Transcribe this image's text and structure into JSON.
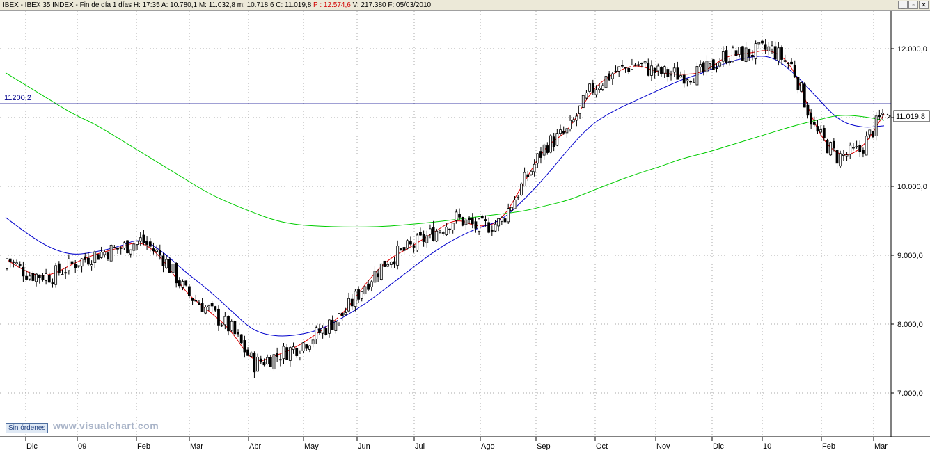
{
  "header": {
    "symbol": "IBEX - IBEX 35 INDEX - Fin de día 1 días",
    "fields": [
      {
        "label": "H:",
        "value": "17:35"
      },
      {
        "label": "A:",
        "value": "10.780,1"
      },
      {
        "label": "M:",
        "value": "11.032,8"
      },
      {
        "label": "m:",
        "value": "10.718,6"
      },
      {
        "label": "C:",
        "value": "11.019,8"
      },
      {
        "label": "P",
        "value": ": 12.574,6",
        "color": "#d00000"
      },
      {
        "label": "V:",
        "value": "217.380"
      },
      {
        "label": "F:",
        "value": "05/03/2010"
      }
    ],
    "window_buttons": [
      "_",
      "▫",
      "✕"
    ]
  },
  "footer": {
    "orders_button": "Sin órdenes",
    "watermark": "www.visualchart.com"
  },
  "chart_data": {
    "type": "candlestick",
    "ylim": [
      6400,
      12600
    ],
    "y_ticks": [
      {
        "value": 7000,
        "label": "7.000,0"
      },
      {
        "value": 8000,
        "label": "8.000,0"
      },
      {
        "value": 9000,
        "label": "9.000,0"
      },
      {
        "value": 10000,
        "label": "10.000,0"
      },
      {
        "value": 11000,
        "label": "11.000,0"
      },
      {
        "value": 12000,
        "label": "12.000,0"
      }
    ],
    "x_labels": [
      "Dic",
      "09",
      "Feb",
      "Mar",
      "Abr",
      "May",
      "Jun",
      "Jul",
      "Ago",
      "Sep",
      "Oct",
      "Nov",
      "Dic",
      "10",
      "Feb",
      "Mar"
    ],
    "last_price": {
      "value": 11019.8,
      "label": "11.019,8"
    },
    "horizontal_line": {
      "value": 11200.2,
      "label": "11200.2",
      "color": "#00008b"
    },
    "colors": {
      "up": "#000000",
      "down": "#000000",
      "ma_short": "#e00000",
      "ma_mid": "#0000cc",
      "ma_long": "#00cc00",
      "grid": "#a8a8a8"
    },
    "moving_averages": [
      {
        "color": "#e00000",
        "values": [
          8950,
          8720,
          8700,
          8880,
          9020,
          9100,
          9220,
          8950,
          8450,
          8200,
          7920,
          7420,
          7540,
          7680,
          7900,
          8150,
          8600,
          8950,
          9120,
          9330,
          9540,
          9400,
          9480,
          10050,
          10600,
          10800,
          11400,
          11650,
          11780,
          11650,
          11620,
          11650,
          11900,
          11930,
          12000,
          11740,
          10800,
          10420,
          10520,
          11050
        ]
      },
      {
        "color": "#0000cc",
        "values": [
          9550,
          9300,
          9100,
          9000,
          9050,
          9120,
          9250,
          9050,
          8750,
          8500,
          8200,
          7900,
          7820,
          7840,
          7920,
          8100,
          8300,
          8550,
          8800,
          9050,
          9250,
          9400,
          9500,
          9800,
          10150,
          10550,
          10900,
          11100,
          11250,
          11400,
          11550,
          11650,
          11800,
          11880,
          11900,
          11650,
          11300,
          10950,
          10850,
          10880
        ]
      },
      {
        "color": "#00cc00",
        "values": [
          11650,
          11450,
          11250,
          11050,
          10900,
          10700,
          10500,
          10300,
          10100,
          9900,
          9750,
          9620,
          9500,
          9440,
          9420,
          9410,
          9410,
          9420,
          9450,
          9480,
          9520,
          9560,
          9600,
          9640,
          9720,
          9800,
          9930,
          10060,
          10180,
          10280,
          10400,
          10480,
          10580,
          10680,
          10780,
          10880,
          10960,
          11040,
          11020,
          10960
        ]
      }
    ]
  }
}
